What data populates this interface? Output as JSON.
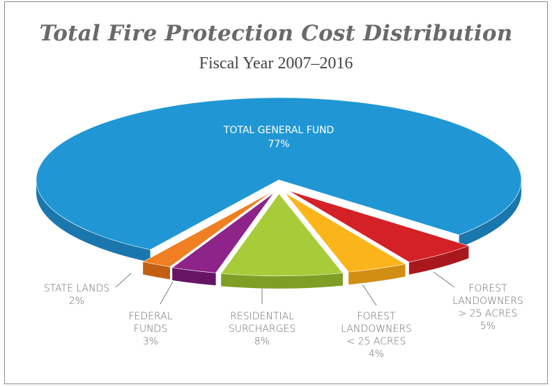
{
  "chart_data": {
    "type": "pie",
    "title": "Total Fire Protection Cost Distribution",
    "subtitle": "Fiscal Year 2007–2016",
    "slices": [
      {
        "label": "TOTAL GENERAL FUND",
        "value": 77,
        "value_label": "77%",
        "color": "#2097d4",
        "side_color": "#1a77ad"
      },
      {
        "label": "FOREST LANDOWNERS > 25 ACRES",
        "label_lines": [
          "FOREST",
          "LANDOWNERS",
          "> 25 ACRES"
        ],
        "value": 5,
        "value_label": "5%",
        "color": "#d42127",
        "side_color": "#a9181d"
      },
      {
        "label": "FOREST LANDOWNERS < 25 ACRES",
        "label_lines": [
          "FOREST",
          "LANDOWNERS",
          "< 25 ACRES"
        ],
        "value": 4,
        "value_label": "4%",
        "color": "#fbb51b",
        "side_color": "#d08e12"
      },
      {
        "label": "RESIDENTIAL SURCHARGES",
        "label_lines": [
          "RESIDENTIAL",
          "SURCHARGES"
        ],
        "value": 8,
        "value_label": "8%",
        "color": "#a8cb3a",
        "side_color": "#7f9e26"
      },
      {
        "label": "FEDERAL FUNDS",
        "label_lines": [
          "FEDERAL",
          "FUNDS"
        ],
        "value": 3,
        "value_label": "3%",
        "color": "#8e2389",
        "side_color": "#681565"
      },
      {
        "label": "STATE LANDS",
        "label_lines": [
          "STATE LANDS"
        ],
        "value": 2,
        "value_label": "2%",
        "color": "#f07f21",
        "side_color": "#c25f12"
      }
    ],
    "legend": "none",
    "labels": "callouts"
  }
}
